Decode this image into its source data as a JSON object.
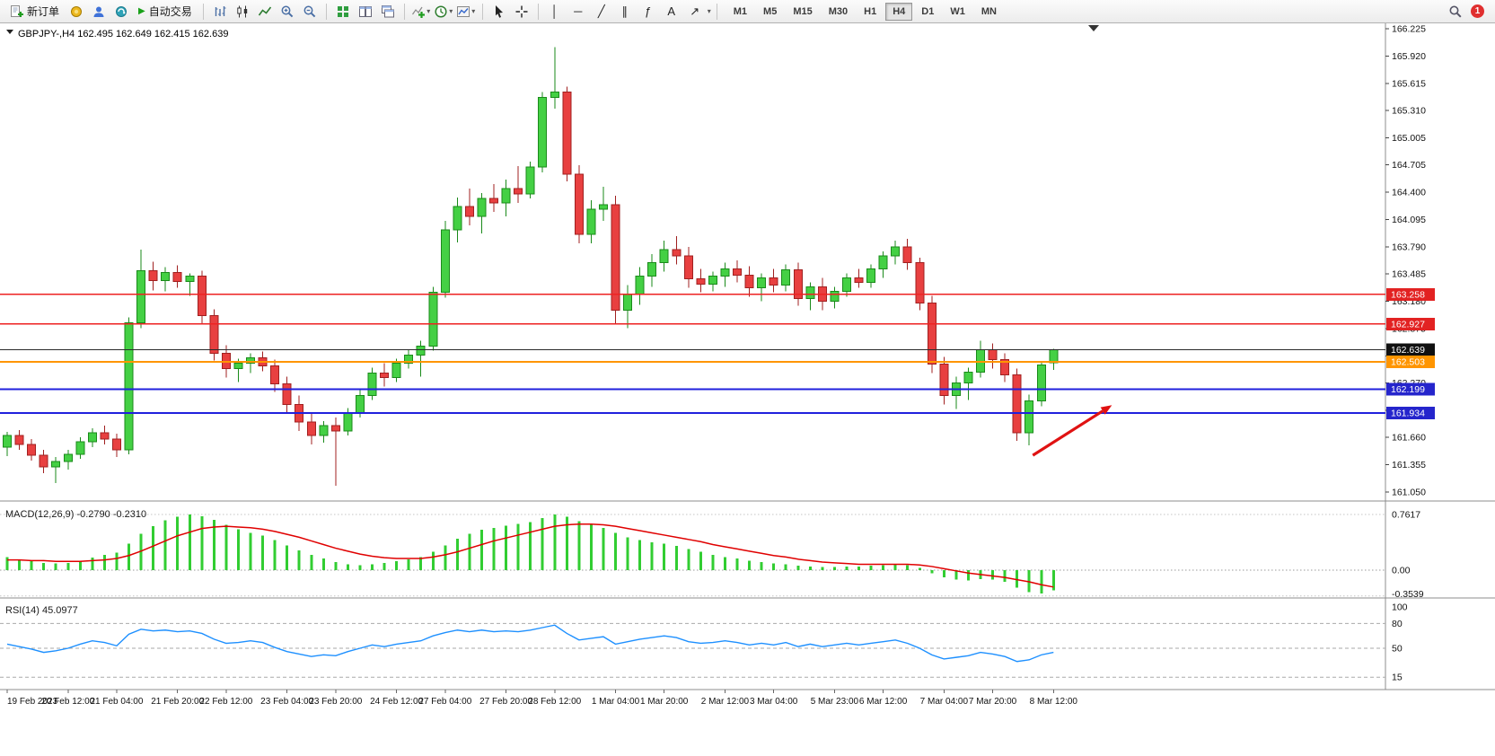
{
  "toolbar": {
    "new_order": "新订单",
    "auto_trading": "自动交易",
    "timeframes": [
      "M1",
      "M5",
      "M15",
      "M30",
      "H1",
      "H4",
      "D1",
      "W1",
      "MN"
    ],
    "active_timeframe": "H4",
    "notification_badge": "1",
    "tools": {
      "play": "▶",
      "vline": "│",
      "hline": "─",
      "trendline": "╱",
      "channel": "∥",
      "fibonacci": "ƒ",
      "text": "A",
      "arrows": "↗",
      "caret": "▾"
    },
    "draw_tool_order": [
      "vline",
      "hline",
      "trendline",
      "channel",
      "fibonacci",
      "text",
      "arrows"
    ]
  },
  "chart_data": {
    "type": "candlestick",
    "symbol_period": "GBPJPY-,H4",
    "title": "GBPJPY-,H4 162.495 162.649 162.415 162.639",
    "ohlc": {
      "open": "162.495",
      "high": "162.649",
      "low": "162.415",
      "close": "162.639"
    },
    "y_axis": {
      "min": 161.05,
      "max": 166.225,
      "ticks": [
        "166.225",
        "165.920",
        "165.615",
        "165.310",
        "165.005",
        "164.705",
        "164.400",
        "164.095",
        "163.790",
        "163.485",
        "163.180",
        "162.875",
        "162.570",
        "162.270",
        "161.965",
        "161.660",
        "161.355",
        "161.050"
      ]
    },
    "x_labels": [
      "19 Feb 2023",
      "20 Feb 12:00",
      "21 Feb 04:00",
      "21 Feb 20:00",
      "22 Feb 12:00",
      "23 Feb 04:00",
      "23 Feb 20:00",
      "24 Feb 12:00",
      "27 Feb 04:00",
      "27 Feb 20:00",
      "28 Feb 12:00",
      "1 Mar 04:00",
      "1 Mar 20:00",
      "2 Mar 12:00",
      "3 Mar 04:00",
      "5 Mar 23:00",
      "6 Mar 12:00",
      "7 Mar 04:00",
      "7 Mar 20:00",
      "8 Mar 12:00"
    ],
    "colors": {
      "up_fill": "#44d044",
      "up_border": "#1a8a1a",
      "down_fill": "#e84040",
      "down_border": "#a02020",
      "macd_hist": "#32cd32",
      "macd_signal": "#e00000",
      "rsi_line": "#1e90ff"
    },
    "candles": [
      [
        161.55,
        161.72,
        161.45,
        161.68
      ],
      [
        161.68,
        161.74,
        161.52,
        161.58
      ],
      [
        161.58,
        161.64,
        161.4,
        161.46
      ],
      [
        161.46,
        161.52,
        161.26,
        161.33
      ],
      [
        161.33,
        161.44,
        161.15,
        161.39
      ],
      [
        161.39,
        161.52,
        161.3,
        161.47
      ],
      [
        161.47,
        161.66,
        161.42,
        161.61
      ],
      [
        161.61,
        161.76,
        161.55,
        161.71
      ],
      [
        161.71,
        161.79,
        161.58,
        161.64
      ],
      [
        161.64,
        161.7,
        161.44,
        161.52
      ],
      [
        161.52,
        163.0,
        161.47,
        162.94
      ],
      [
        162.94,
        163.76,
        162.88,
        163.52
      ],
      [
        163.52,
        163.62,
        163.3,
        163.41
      ],
      [
        163.41,
        163.56,
        163.29,
        163.5
      ],
      [
        163.5,
        163.58,
        163.33,
        163.4
      ],
      [
        163.4,
        163.49,
        163.24,
        163.46
      ],
      [
        163.46,
        163.52,
        162.92,
        163.02
      ],
      [
        163.02,
        163.09,
        162.52,
        162.6
      ],
      [
        162.6,
        162.69,
        162.33,
        162.43
      ],
      [
        162.43,
        162.54,
        162.28,
        162.49
      ],
      [
        162.49,
        162.6,
        162.38,
        162.55
      ],
      [
        162.55,
        162.62,
        162.4,
        162.46
      ],
      [
        162.46,
        162.53,
        162.17,
        162.26
      ],
      [
        162.26,
        162.34,
        161.93,
        162.03
      ],
      [
        162.03,
        162.13,
        161.73,
        161.83
      ],
      [
        161.83,
        161.93,
        161.58,
        161.68
      ],
      [
        161.68,
        161.84,
        161.6,
        161.79
      ],
      [
        161.79,
        161.88,
        161.12,
        161.73
      ],
      [
        161.73,
        161.99,
        161.68,
        161.93
      ],
      [
        161.93,
        162.19,
        161.88,
        162.13
      ],
      [
        162.13,
        162.44,
        162.08,
        162.38
      ],
      [
        162.38,
        162.49,
        162.23,
        162.33
      ],
      [
        162.33,
        162.54,
        162.28,
        162.49
      ],
      [
        162.49,
        162.64,
        162.43,
        162.58
      ],
      [
        162.58,
        162.74,
        162.34,
        162.68
      ],
      [
        162.68,
        163.34,
        162.63,
        163.28
      ],
      [
        163.28,
        164.08,
        163.22,
        163.98
      ],
      [
        163.98,
        164.34,
        163.84,
        164.24
      ],
      [
        164.24,
        164.44,
        164.03,
        164.13
      ],
      [
        164.13,
        164.39,
        163.94,
        164.33
      ],
      [
        164.33,
        164.49,
        164.18,
        164.28
      ],
      [
        164.28,
        164.54,
        164.13,
        164.44
      ],
      [
        164.44,
        164.69,
        164.28,
        164.38
      ],
      [
        164.38,
        164.74,
        164.33,
        164.68
      ],
      [
        164.68,
        165.52,
        164.62,
        165.46
      ],
      [
        165.46,
        166.02,
        165.33,
        165.52
      ],
      [
        165.52,
        165.58,
        164.52,
        164.6
      ],
      [
        164.6,
        164.7,
        163.83,
        163.93
      ],
      [
        163.93,
        164.31,
        163.83,
        164.21
      ],
      [
        164.21,
        164.46,
        164.08,
        164.26
      ],
      [
        164.26,
        164.36,
        162.93,
        163.08
      ],
      [
        163.08,
        163.36,
        162.88,
        163.26
      ],
      [
        163.26,
        163.56,
        163.14,
        163.46
      ],
      [
        163.46,
        163.71,
        163.34,
        163.61
      ],
      [
        163.61,
        163.86,
        163.51,
        163.76
      ],
      [
        163.76,
        163.91,
        163.59,
        163.69
      ],
      [
        163.69,
        163.79,
        163.33,
        163.43
      ],
      [
        163.43,
        163.54,
        163.28,
        163.37
      ],
      [
        163.37,
        163.51,
        163.29,
        163.46
      ],
      [
        163.46,
        163.61,
        163.34,
        163.54
      ],
      [
        163.54,
        163.64,
        163.39,
        163.47
      ],
      [
        163.47,
        163.57,
        163.23,
        163.33
      ],
      [
        163.33,
        163.49,
        163.18,
        163.44
      ],
      [
        163.44,
        163.54,
        163.28,
        163.36
      ],
      [
        163.36,
        163.59,
        163.29,
        163.53
      ],
      [
        163.53,
        163.61,
        163.13,
        163.21
      ],
      [
        163.21,
        163.39,
        163.08,
        163.34
      ],
      [
        163.34,
        163.44,
        163.08,
        163.18
      ],
      [
        163.18,
        163.34,
        163.1,
        163.29
      ],
      [
        163.29,
        163.49,
        163.23,
        163.44
      ],
      [
        163.44,
        163.54,
        163.33,
        163.39
      ],
      [
        163.39,
        163.59,
        163.33,
        163.54
      ],
      [
        163.54,
        163.74,
        163.44,
        163.69
      ],
      [
        163.69,
        163.86,
        163.59,
        163.79
      ],
      [
        163.79,
        163.88,
        163.53,
        163.61
      ],
      [
        163.61,
        163.67,
        163.08,
        163.16
      ],
      [
        163.16,
        163.24,
        162.38,
        162.48
      ],
      [
        162.48,
        162.56,
        162.03,
        162.13
      ],
      [
        162.13,
        162.34,
        161.98,
        162.27
      ],
      [
        162.27,
        162.44,
        162.08,
        162.39
      ],
      [
        162.39,
        162.74,
        162.33,
        162.64
      ],
      [
        162.64,
        162.71,
        162.43,
        162.53
      ],
      [
        162.53,
        162.6,
        162.28,
        162.36
      ],
      [
        162.36,
        162.43,
        161.62,
        161.71
      ],
      [
        161.71,
        162.14,
        161.57,
        162.07
      ],
      [
        162.07,
        162.51,
        162.01,
        162.47
      ],
      [
        162.495,
        162.649,
        162.415,
        162.639
      ]
    ],
    "hlines": [
      {
        "price": 163.258,
        "label": "163.258",
        "color": "#ee2222",
        "width": 1.3,
        "badge": "#e22222"
      },
      {
        "price": 162.927,
        "label": "162.927",
        "color": "#ee2222",
        "width": 1.3,
        "badge": "#e22222"
      },
      {
        "price": 162.639,
        "label": "162.639",
        "color": "#2a2a2a",
        "width": 1,
        "badge": "#101010"
      },
      {
        "price": 162.503,
        "label": "162.503",
        "color": "#ff9500",
        "width": 2,
        "badge": "#ff9500"
      },
      {
        "price": 162.199,
        "label": "162.199",
        "color": "#2020dd",
        "width": 2,
        "badge": "#2525cc"
      },
      {
        "price": 161.934,
        "label": "161.934",
        "color": "#2020dd",
        "width": 2,
        "badge": "#2525cc"
      }
    ],
    "arrow": {
      "from_index": 84.3,
      "from_price": 161.46,
      "to_index": 90.8,
      "to_price": 162.02,
      "color": "#e01212"
    },
    "macd": {
      "label": "MACD(12,26,9)",
      "value": "-0.2790",
      "signal_value": "-0.2310",
      "ticks": [
        {
          "v": 0.7617,
          "label": "0.7617"
        },
        {
          "v": 0,
          "label": "0.00"
        },
        {
          "v": -0.3539,
          "label": "-0.3539"
        }
      ],
      "histogram": [
        0.18,
        0.15,
        0.12,
        0.1,
        0.09,
        0.1,
        0.13,
        0.17,
        0.21,
        0.24,
        0.36,
        0.5,
        0.6,
        0.68,
        0.73,
        0.76,
        0.74,
        0.69,
        0.62,
        0.56,
        0.51,
        0.47,
        0.41,
        0.34,
        0.27,
        0.21,
        0.16,
        0.11,
        0.08,
        0.07,
        0.08,
        0.1,
        0.12,
        0.15,
        0.18,
        0.25,
        0.34,
        0.43,
        0.5,
        0.55,
        0.58,
        0.61,
        0.63,
        0.66,
        0.71,
        0.76,
        0.73,
        0.67,
        0.62,
        0.58,
        0.51,
        0.45,
        0.41,
        0.38,
        0.36,
        0.33,
        0.29,
        0.25,
        0.21,
        0.18,
        0.16,
        0.13,
        0.11,
        0.09,
        0.08,
        0.06,
        0.05,
        0.04,
        0.04,
        0.05,
        0.05,
        0.06,
        0.07,
        0.08,
        0.07,
        0.03,
        -0.04,
        -0.1,
        -0.13,
        -0.14,
        -0.12,
        -0.13,
        -0.16,
        -0.24,
        -0.3,
        -0.32,
        -0.279
      ],
      "signal": [
        0.14,
        0.14,
        0.13,
        0.13,
        0.12,
        0.12,
        0.12,
        0.13,
        0.14,
        0.16,
        0.2,
        0.26,
        0.33,
        0.4,
        0.47,
        0.52,
        0.57,
        0.59,
        0.6,
        0.59,
        0.58,
        0.56,
        0.53,
        0.49,
        0.45,
        0.4,
        0.35,
        0.3,
        0.26,
        0.22,
        0.19,
        0.17,
        0.16,
        0.16,
        0.16,
        0.18,
        0.21,
        0.25,
        0.3,
        0.35,
        0.4,
        0.44,
        0.48,
        0.52,
        0.56,
        0.6,
        0.62,
        0.63,
        0.63,
        0.62,
        0.6,
        0.57,
        0.54,
        0.51,
        0.48,
        0.45,
        0.42,
        0.39,
        0.35,
        0.32,
        0.29,
        0.26,
        0.23,
        0.2,
        0.18,
        0.15,
        0.13,
        0.11,
        0.1,
        0.09,
        0.08,
        0.08,
        0.08,
        0.08,
        0.08,
        0.07,
        0.05,
        0.02,
        -0.01,
        -0.04,
        -0.06,
        -0.08,
        -0.1,
        -0.13,
        -0.16,
        -0.2,
        -0.231
      ]
    },
    "rsi": {
      "label": "RSI(14)",
      "value": "45.0977",
      "ticks": [
        {
          "v": 100,
          "label": "100",
          "line": false
        },
        {
          "v": 80,
          "label": "80",
          "line": true
        },
        {
          "v": 50,
          "label": "50",
          "line": true
        },
        {
          "v": 15,
          "label": "15",
          "line": true
        }
      ],
      "values": [
        55,
        52,
        49,
        45,
        47,
        50,
        55,
        59,
        57,
        53,
        67,
        73,
        71,
        72,
        70,
        71,
        68,
        61,
        56,
        57,
        59,
        57,
        51,
        46,
        43,
        40,
        42,
        41,
        46,
        50,
        54,
        52,
        55,
        57,
        59,
        65,
        69,
        72,
        70,
        72,
        70,
        71,
        70,
        72,
        75,
        78,
        68,
        60,
        62,
        64,
        55,
        58,
        61,
        63,
        65,
        63,
        58,
        56,
        57,
        59,
        57,
        54,
        56,
        54,
        57,
        52,
        55,
        52,
        54,
        56,
        54,
        56,
        58,
        60,
        56,
        50,
        42,
        37,
        39,
        41,
        45,
        43,
        40,
        34,
        36,
        42,
        45.1
      ]
    }
  }
}
